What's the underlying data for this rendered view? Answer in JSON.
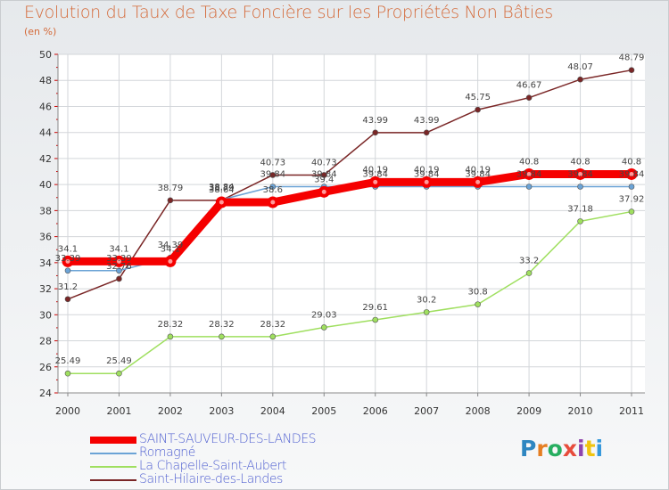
{
  "title": "Evolution du Taux de Taxe Foncière sur les Propriétés Non Bâties",
  "unit": "(en %)",
  "logo": {
    "text": "Proxiti",
    "colors": [
      "#2e86c1",
      "#e67e22",
      "#27ae60",
      "#e74c3c",
      "#8e44ad",
      "#f1c40f",
      "#3498db"
    ]
  },
  "chart_data": {
    "type": "line",
    "categories": [
      "2000",
      "2001",
      "2002",
      "2003",
      "2004",
      "2005",
      "2006",
      "2007",
      "2008",
      "2009",
      "2010",
      "2011"
    ],
    "ylim": [
      24,
      50
    ],
    "yticks": [
      24,
      26,
      28,
      30,
      32,
      34,
      36,
      38,
      40,
      42,
      44,
      46,
      48,
      50
    ],
    "grid": true,
    "legend_position": "bottom-left",
    "series": [
      {
        "name": "SAINT-SAUVEUR-DES-LANDES",
        "color": "#f50000",
        "values": [
          34.1,
          34.1,
          34.1,
          38.64,
          38.64,
          39.44,
          40.19,
          40.19,
          40.19,
          40.8,
          40.8,
          40.8
        ],
        "labels": [
          "34.1",
          "34.1",
          "34.1",
          "38.64",
          "38.6",
          "39.4",
          "40.19",
          "40.19",
          "40.19",
          "40.8",
          "40.8",
          "40.8"
        ]
      },
      {
        "name": "Romagné",
        "color": "#6ba3d6",
        "values": [
          33.39,
          33.39,
          34.39,
          38.84,
          39.84,
          39.84,
          39.84,
          39.84,
          39.84,
          39.84,
          39.84,
          39.84
        ],
        "labels": [
          "33.39",
          "33.39",
          "34.39",
          "38.84",
          "39.84",
          "39.84",
          "39.84",
          "39.84",
          "39.84",
          "39.84",
          "39.84",
          "39.84"
        ]
      },
      {
        "name": "La Chapelle-Saint-Aubert",
        "color": "#9fdf5f",
        "values": [
          25.49,
          25.49,
          28.32,
          28.32,
          28.32,
          29.03,
          29.61,
          30.2,
          30.8,
          33.2,
          37.18,
          37.92
        ],
        "labels": [
          "25.49",
          "25.49",
          "28.32",
          "28.32",
          "28.32",
          "29.03",
          "29.61",
          "30.2",
          "30.8",
          "33.2",
          "37.18",
          "37.92"
        ]
      },
      {
        "name": "Saint-Hilaire-des-Landes",
        "color": "#7a2626",
        "values": [
          31.2,
          32.76,
          38.79,
          38.79,
          40.73,
          40.73,
          43.99,
          43.99,
          45.75,
          46.67,
          48.07,
          48.79
        ],
        "labels": [
          "31.2",
          "32.76",
          "38.79",
          "38.79",
          "40.73",
          "40.73",
          "43.99",
          "43.99",
          "45.75",
          "46.67",
          "48.07",
          "48.79"
        ]
      }
    ]
  }
}
